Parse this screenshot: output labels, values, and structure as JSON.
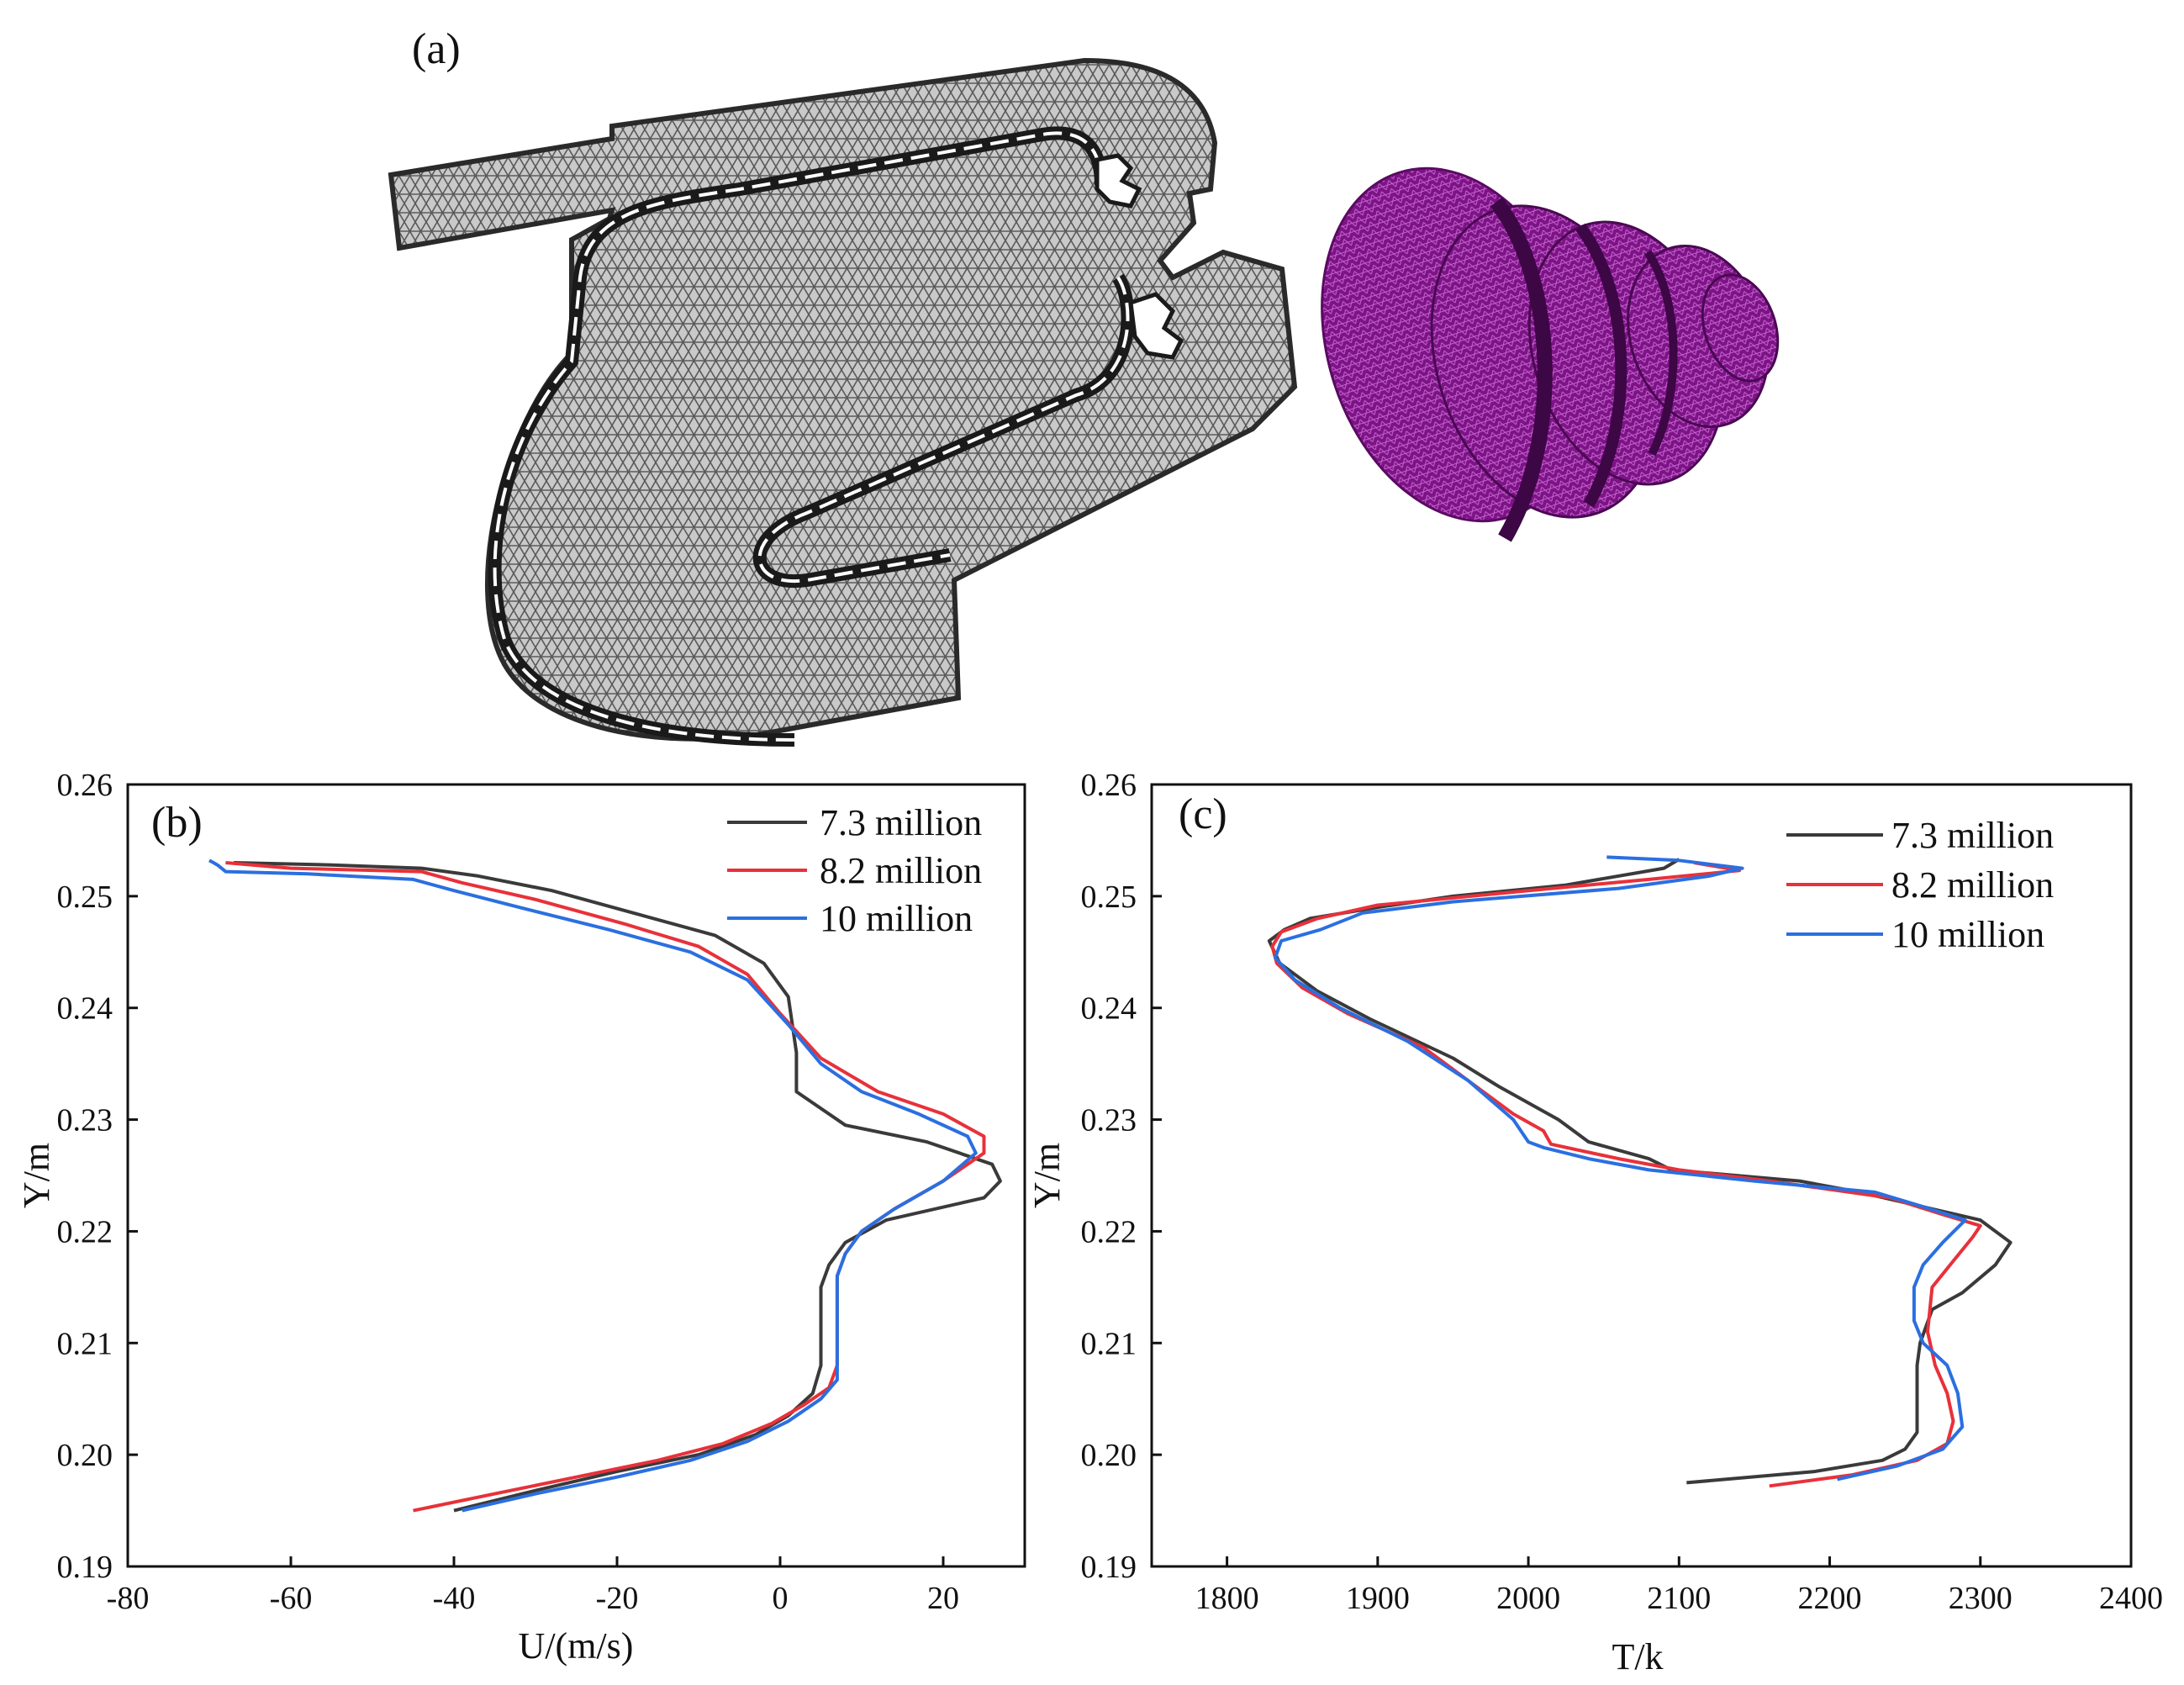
{
  "figure": {
    "panel_a_label": "(a)"
  },
  "colors": {
    "series_1": "#3a3a3a",
    "series_2": "#e8313a",
    "series_3": "#2b6fe0",
    "mesh_2d": "#8a8a8a",
    "mesh_3d": "#8a1a8f"
  },
  "chart_data": [
    {
      "type": "line",
      "panel_label": "(b)",
      "xlabel": "U/(m/s)",
      "ylabel": "Y/m",
      "xlim": [
        -80,
        30
      ],
      "ylim": [
        0.19,
        0.26
      ],
      "xticks": [
        "-80",
        "-60",
        "-40",
        "-20",
        "0",
        "20"
      ],
      "yticks": [
        "0.19",
        "0.20",
        "0.21",
        "0.22",
        "0.23",
        "0.24",
        "0.25",
        "0.26"
      ],
      "legend_position": "top-right",
      "grid": false,
      "series": [
        {
          "name": "7.3 million",
          "color": "#3a3a3a",
          "points": [
            [
              -40,
              0.195
            ],
            [
              -30,
              0.1968
            ],
            [
              -20,
              0.1985
            ],
            [
              -10,
              0.2
            ],
            [
              -3,
              0.2018
            ],
            [
              1,
              0.2035
            ],
            [
              4,
              0.2055
            ],
            [
              5,
              0.208
            ],
            [
              5,
              0.212
            ],
            [
              5,
              0.215
            ],
            [
              6,
              0.217
            ],
            [
              8,
              0.219
            ],
            [
              13,
              0.221
            ],
            [
              25,
              0.223
            ],
            [
              27,
              0.2245
            ],
            [
              26,
              0.226
            ],
            [
              18,
              0.228
            ],
            [
              8,
              0.2295
            ],
            [
              2,
              0.2325
            ],
            [
              2,
              0.236
            ],
            [
              1,
              0.241
            ],
            [
              -2,
              0.244
            ],
            [
              -8,
              0.2465
            ],
            [
              -18,
              0.2485
            ],
            [
              -28,
              0.2505
            ],
            [
              -37,
              0.2518
            ],
            [
              -44,
              0.2525
            ],
            [
              -55,
              0.2528
            ],
            [
              -67,
              0.253
            ]
          ]
        },
        {
          "name": "8.2 million",
          "color": "#e8313a",
          "points": [
            [
              -45,
              0.195
            ],
            [
              -35,
              0.1965
            ],
            [
              -25,
              0.198
            ],
            [
              -15,
              0.1995
            ],
            [
              -7,
              0.201
            ],
            [
              -1,
              0.2028
            ],
            [
              3,
              0.2045
            ],
            [
              6,
              0.206
            ],
            [
              7,
              0.208
            ],
            [
              7,
              0.213
            ],
            [
              7,
              0.216
            ],
            [
              8,
              0.218
            ],
            [
              10,
              0.22
            ],
            [
              14,
              0.222
            ],
            [
              20,
              0.2245
            ],
            [
              25,
              0.227
            ],
            [
              25,
              0.2285
            ],
            [
              20,
              0.2305
            ],
            [
              12,
              0.2325
            ],
            [
              5,
              0.2355
            ],
            [
              0,
              0.2395
            ],
            [
              -4,
              0.243
            ],
            [
              -10,
              0.2455
            ],
            [
              -19,
              0.2475
            ],
            [
              -30,
              0.2497
            ],
            [
              -39,
              0.2512
            ],
            [
              -44,
              0.2522
            ],
            [
              -60,
              0.2525
            ],
            [
              -68,
              0.253
            ]
          ]
        },
        {
          "name": "10 million",
          "color": "#2b6fe0",
          "points": [
            [
              -39,
              0.195
            ],
            [
              -30,
              0.1965
            ],
            [
              -20,
              0.198
            ],
            [
              -11,
              0.1995
            ],
            [
              -4,
              0.2012
            ],
            [
              1,
              0.203
            ],
            [
              5,
              0.205
            ],
            [
              7,
              0.2067
            ],
            [
              7,
              0.208
            ],
            [
              7,
              0.213
            ],
            [
              7,
              0.216
            ],
            [
              8,
              0.218
            ],
            [
              10,
              0.22
            ],
            [
              14,
              0.222
            ],
            [
              20,
              0.2245
            ],
            [
              24,
              0.227
            ],
            [
              23,
              0.2285
            ],
            [
              17,
              0.2305
            ],
            [
              10,
              0.2325
            ],
            [
              5,
              0.235
            ],
            [
              1,
              0.2385
            ],
            [
              -4,
              0.2425
            ],
            [
              -11,
              0.245
            ],
            [
              -21,
              0.247
            ],
            [
              -32,
              0.249
            ],
            [
              -40,
              0.2505
            ],
            [
              -45,
              0.2515
            ],
            [
              -58,
              0.252
            ],
            [
              -68,
              0.2522
            ],
            [
              -69,
              0.2528
            ],
            [
              -70,
              0.2532
            ]
          ]
        }
      ]
    },
    {
      "type": "line",
      "panel_label": "(c)",
      "xlabel": "T/k",
      "ylabel": "Y/m",
      "xlim": [
        1750,
        2400
      ],
      "ylim": [
        0.19,
        0.26
      ],
      "xticks": [
        "1800",
        "1900",
        "2000",
        "2100",
        "2200",
        "2300",
        "2400"
      ],
      "yticks": [
        "0.19",
        "0.20",
        "0.21",
        "0.22",
        "0.23",
        "0.24",
        "0.25",
        "0.26"
      ],
      "legend_position": "top-right",
      "grid": false,
      "series": [
        {
          "name": "7.3 million",
          "color": "#3a3a3a",
          "points": [
            [
              2105,
              0.1975
            ],
            [
              2190,
              0.1985
            ],
            [
              2235,
              0.1995
            ],
            [
              2250,
              0.2005
            ],
            [
              2258,
              0.202
            ],
            [
              2258,
              0.205
            ],
            [
              2258,
              0.208
            ],
            [
              2260,
              0.21
            ],
            [
              2268,
              0.213
            ],
            [
              2288,
              0.2145
            ],
            [
              2310,
              0.217
            ],
            [
              2320,
              0.219
            ],
            [
              2300,
              0.221
            ],
            [
              2220,
              0.2235
            ],
            [
              2180,
              0.2245
            ],
            [
              2095,
              0.2255
            ],
            [
              2080,
              0.2265
            ],
            [
              2040,
              0.228
            ],
            [
              2020,
              0.23
            ],
            [
              1980,
              0.233
            ],
            [
              1950,
              0.2355
            ],
            [
              1895,
              0.239
            ],
            [
              1860,
              0.2415
            ],
            [
              1835,
              0.244
            ],
            [
              1828,
              0.246
            ],
            [
              1838,
              0.247
            ],
            [
              1855,
              0.248
            ],
            [
              1900,
              0.249
            ],
            [
              1950,
              0.25
            ],
            [
              2025,
              0.251
            ],
            [
              2090,
              0.2525
            ],
            [
              2100,
              0.2533
            ]
          ]
        },
        {
          "name": "8.2 million",
          "color": "#e8313a",
          "points": [
            [
              2160,
              0.1972
            ],
            [
              2215,
              0.1982
            ],
            [
              2258,
              0.1995
            ],
            [
              2278,
              0.201
            ],
            [
              2282,
              0.203
            ],
            [
              2278,
              0.2055
            ],
            [
              2270,
              0.208
            ],
            [
              2265,
              0.211
            ],
            [
              2268,
              0.215
            ],
            [
              2280,
              0.217
            ],
            [
              2295,
              0.2195
            ],
            [
              2300,
              0.2205
            ],
            [
              2275,
              0.2215
            ],
            [
              2240,
              0.223
            ],
            [
              2160,
              0.2245
            ],
            [
              2100,
              0.2255
            ],
            [
              2060,
              0.2265
            ],
            [
              2015,
              0.2278
            ],
            [
              2010,
              0.229
            ],
            [
              1990,
              0.2305
            ],
            [
              1965,
              0.233
            ],
            [
              1930,
              0.2365
            ],
            [
              1880,
              0.2395
            ],
            [
              1850,
              0.2418
            ],
            [
              1833,
              0.244
            ],
            [
              1830,
              0.2455
            ],
            [
              1836,
              0.2468
            ],
            [
              1860,
              0.248
            ],
            [
              1900,
              0.2492
            ],
            [
              2000,
              0.2505
            ],
            [
              2080,
              0.2515
            ],
            [
              2140,
              0.2523
            ],
            [
              2110,
              0.253
            ]
          ]
        },
        {
          "name": "10 million",
          "color": "#2b6fe0",
          "points": [
            [
              2205,
              0.1978
            ],
            [
              2245,
              0.199
            ],
            [
              2275,
              0.2005
            ],
            [
              2288,
              0.2025
            ],
            [
              2285,
              0.2055
            ],
            [
              2278,
              0.208
            ],
            [
              2262,
              0.21
            ],
            [
              2256,
              0.212
            ],
            [
              2256,
              0.215
            ],
            [
              2262,
              0.217
            ],
            [
              2275,
              0.219
            ],
            [
              2290,
              0.221
            ],
            [
              2262,
              0.2222
            ],
            [
              2230,
              0.2235
            ],
            [
              2150,
              0.2245
            ],
            [
              2080,
              0.2255
            ],
            [
              2040,
              0.2265
            ],
            [
              2010,
              0.2275
            ],
            [
              2000,
              0.228
            ],
            [
              1990,
              0.23
            ],
            [
              1960,
              0.2335
            ],
            [
              1920,
              0.237
            ],
            [
              1875,
              0.24
            ],
            [
              1845,
              0.2425
            ],
            [
              1832,
              0.2445
            ],
            [
              1836,
              0.246
            ],
            [
              1862,
              0.247
            ],
            [
              1890,
              0.2485
            ],
            [
              1950,
              0.2495
            ],
            [
              2060,
              0.2507
            ],
            [
              2120,
              0.2518
            ],
            [
              2142,
              0.2525
            ],
            [
              2100,
              0.2532
            ],
            [
              2052,
              0.2535
            ]
          ]
        }
      ]
    }
  ]
}
